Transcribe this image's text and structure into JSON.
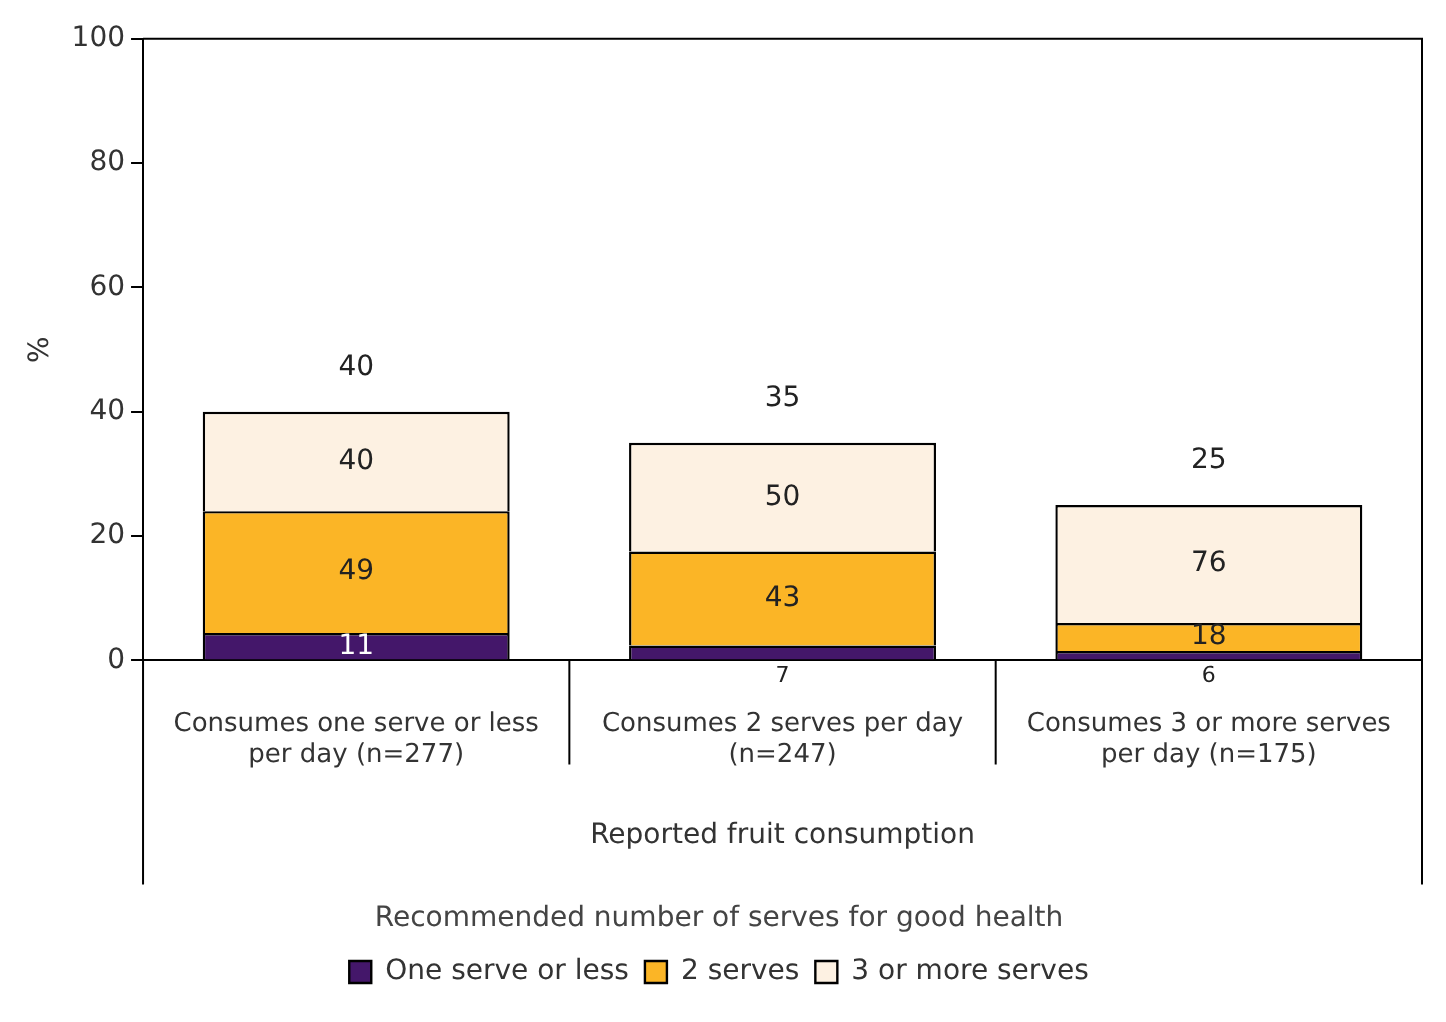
{
  "chart_data": {
    "type": "bar",
    "stacked": true,
    "categories": [
      "Consumes one serve or less per day (n=277)",
      "Consumes 2 serves per day (n=247)",
      "Consumes 3 or more serves per day (n=175)"
    ],
    "series": [
      {
        "name": "One serve or less",
        "color": "#44176a",
        "values": [
          4.4,
          2.4,
          1.5
        ]
      },
      {
        "name": "2 serves",
        "color": "#fbb526",
        "values": [
          19.6,
          15.1,
          4.5
        ]
      },
      {
        "name": "3 or more serves",
        "color": "#fdf1e2",
        "values": [
          16,
          17.5,
          19
        ]
      }
    ],
    "annotations": [
      {
        "text": "11",
        "x": "Consumes one serve or less per day (n=277)",
        "y": 4.4
      },
      {
        "text": "49",
        "x": "Consumes one serve or less per day (n=277)",
        "y": 24
      },
      {
        "text": "40",
        "x": "Consumes one serve or less per day (n=277)",
        "y": 40
      },
      {
        "text": "7",
        "x": "Consumes 2 serves per day (n=247)",
        "y": 2.4
      },
      {
        "text": "43",
        "x": "Consumes 2 serves per day (n=247)",
        "y": 17.5
      },
      {
        "text": "50",
        "x": "Consumes 2 serves per day (n=247)",
        "y": 35
      },
      {
        "text": "6",
        "x": "Consumes 3 or more serves per day (n=175)",
        "y": 1.5
      },
      {
        "text": "18",
        "x": "Consumes 3 or more serves per day (n=175)",
        "y": 6
      },
      {
        "text": "76",
        "x": "Consumes 3 or more serves per day (n=175)",
        "y": 25
      }
    ],
    "totals": [
      "40",
      "35",
      "25"
    ],
    "xlabel": "Reported fruit consumption",
    "ylabel": "%",
    "legend_title": "Recommended number of serves for good health",
    "ylim": [
      0,
      100
    ],
    "yticks": [
      0,
      20,
      40,
      60,
      80,
      100
    ],
    "grid": false,
    "legend": "bottom"
  }
}
